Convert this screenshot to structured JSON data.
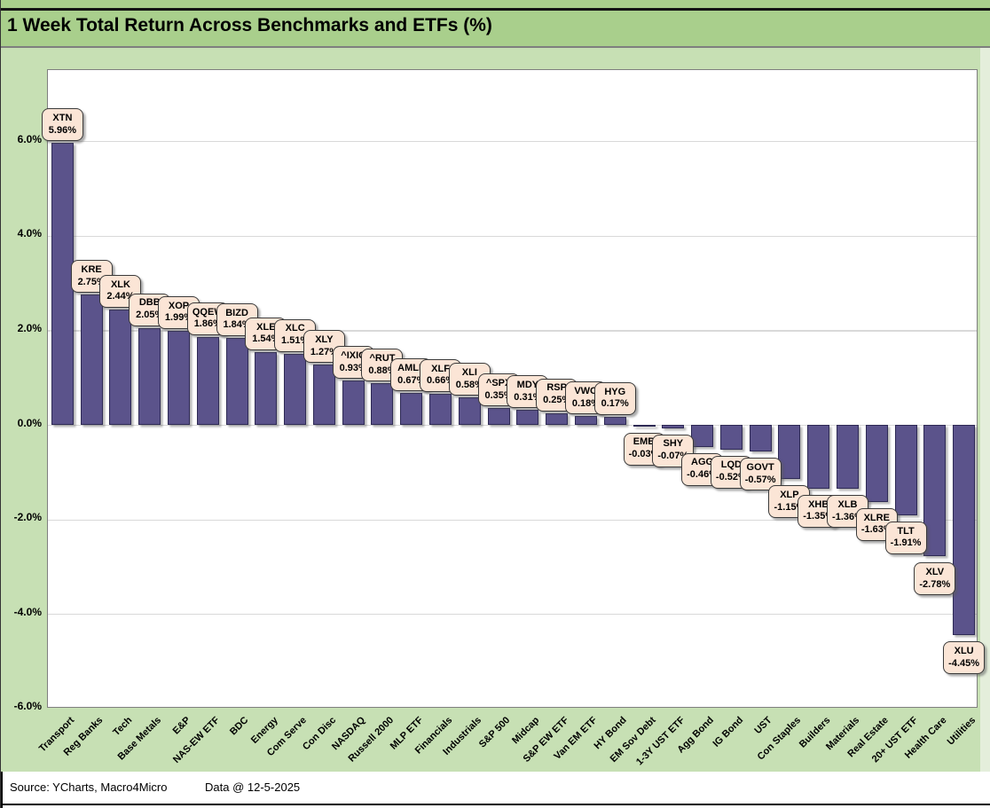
{
  "title": "1 Week Total Return Across Benchmarks and ETFs (%)",
  "footer": {
    "source": "Source: YCharts, Macro4Micro",
    "date_note": "Data @ 12-5-2025"
  },
  "y_axis": {
    "tick_values": [
      6,
      4,
      2,
      0,
      -2,
      -4,
      -6
    ],
    "tick_labels": [
      "6.0%",
      "4.0%",
      "2.0%",
      "0.0%",
      "-2.0%",
      "-4.0%",
      "-6.0%"
    ]
  },
  "chart_data": {
    "type": "bar",
    "title": "1 Week Total Return Across Benchmarks and ETFs (%)",
    "xlabel": "",
    "ylabel": "",
    "ylim": [
      -6,
      7.5
    ],
    "grid": true,
    "legend": "none",
    "categories": [
      "Transport",
      "Reg Banks",
      "Tech",
      "Base Metals",
      "E&P",
      "NAS-EW ETF",
      "BDC",
      "Energy",
      "Com Serve",
      "Con Disc",
      "NASDAQ",
      "Russell 2000",
      "MLP ETF",
      "Financials",
      "Industrials",
      "S&P 500",
      "Midcap",
      "S&P EW ETF",
      "Van EM ETF",
      "HY Bond",
      "EM Sov Debt",
      "1-3Y UST ETF",
      "Agg Bond",
      "IG Bond",
      "UST",
      "Con Staples",
      "Builders",
      "Materials",
      "Real Estate",
      "20+ UST ETF",
      "Health Care",
      "Utilities"
    ],
    "tickers": [
      "XTN",
      "KRE",
      "XLK",
      "DBB",
      "XOP",
      "QQEW",
      "BIZD",
      "XLE",
      "XLC",
      "XLY",
      "^IXIC",
      "^RUT",
      "AMLP",
      "XLF",
      "XLI",
      "^SPX",
      "MDY",
      "RSP",
      "VWO",
      "HYG",
      "EMB",
      "SHY",
      "AGG",
      "LQD",
      "GOVT",
      "XLP",
      "XHB",
      "XLB",
      "XLRE",
      "TLT",
      "XLV",
      "XLU"
    ],
    "series": [
      {
        "name": "1 Week Total Return (%)",
        "values": [
          5.96,
          2.75,
          2.44,
          2.05,
          1.99,
          1.86,
          1.84,
          1.54,
          1.51,
          1.27,
          0.93,
          0.88,
          0.67,
          0.66,
          0.58,
          0.35,
          0.31,
          0.25,
          0.18,
          0.17,
          -0.03,
          -0.07,
          -0.46,
          -0.52,
          -0.57,
          -1.15,
          -1.35,
          -1.36,
          -1.63,
          -1.91,
          -2.78,
          -4.45
        ]
      }
    ],
    "value_labels": [
      "5.96%",
      "2.75%",
      "2.44%",
      "2.05%",
      "1.99%",
      "1.86%",
      "1.84%",
      "1.54%",
      "1.51%",
      "1.27%",
      "0.93%",
      "0.88%",
      "0.67%",
      "0.66%",
      "0.58%",
      "0.35%",
      "0.31%",
      "0.25%",
      "0.18%",
      "0.17%",
      "-0.03%",
      "-0.07%",
      "-0.46%",
      "-0.52%",
      "-0.57%",
      "-1.15%",
      "-1.35%",
      "-1.36%",
      "-1.63%",
      "-1.91%",
      "-2.78%",
      "-4.45%"
    ]
  },
  "colors": {
    "header_band": "#a9cf8c",
    "chart_background": "#c7e0b4",
    "plot_background": "#ffffff",
    "bar_fill": "#5b538b",
    "bar_border": "#2e2a55",
    "callout_fill": "#fbe5d6",
    "callout_border": "#3a3a3a",
    "gridline": "#d9d9d9",
    "plot_border": "#7f7f7f"
  }
}
